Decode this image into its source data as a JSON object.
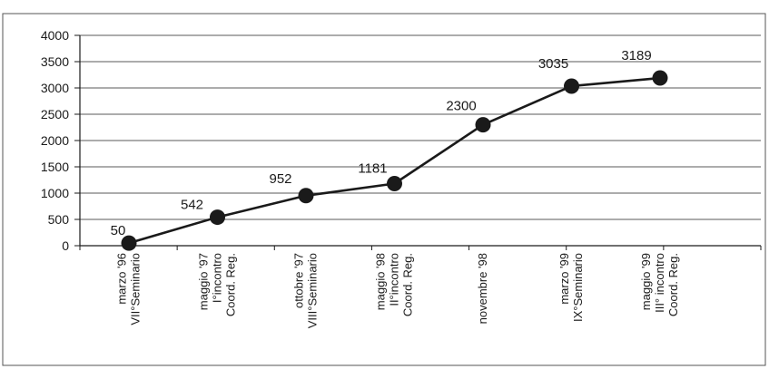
{
  "chart_data": {
    "type": "line",
    "title": "",
    "xlabel": "",
    "ylabel": "",
    "ylim": [
      0,
      4000
    ],
    "y_ticks": [
      0,
      500,
      1000,
      1500,
      2000,
      2500,
      3000,
      3500,
      4000
    ],
    "grid": true,
    "legend": "none",
    "categories": [
      [
        "marzo '96",
        "VII°Seminario"
      ],
      [
        "maggio '97",
        "I°incontro",
        "Coord. Reg."
      ],
      [
        "ottobre '97",
        "VIII°Seminario"
      ],
      [
        "maggio '98",
        "II°incontro",
        "Coord. Reg."
      ],
      [
        "novembre '98"
      ],
      [
        "marzo '99",
        "IX°Seminario"
      ],
      [
        "maggio '99",
        "III° incontro",
        "Coord. Reg."
      ]
    ],
    "series": [
      {
        "values": [
          50,
          542,
          952,
          1181,
          2300,
          3035,
          3189
        ],
        "data_labels": [
          "50",
          "542",
          "952",
          "1181",
          "2300",
          "3035",
          "3189"
        ]
      }
    ],
    "colors": {
      "line": "#1a1a1a",
      "marker": "#1a1a1a",
      "grid": "#7a7a7a",
      "text": "#1a1a1a",
      "frame": "#555555"
    }
  }
}
